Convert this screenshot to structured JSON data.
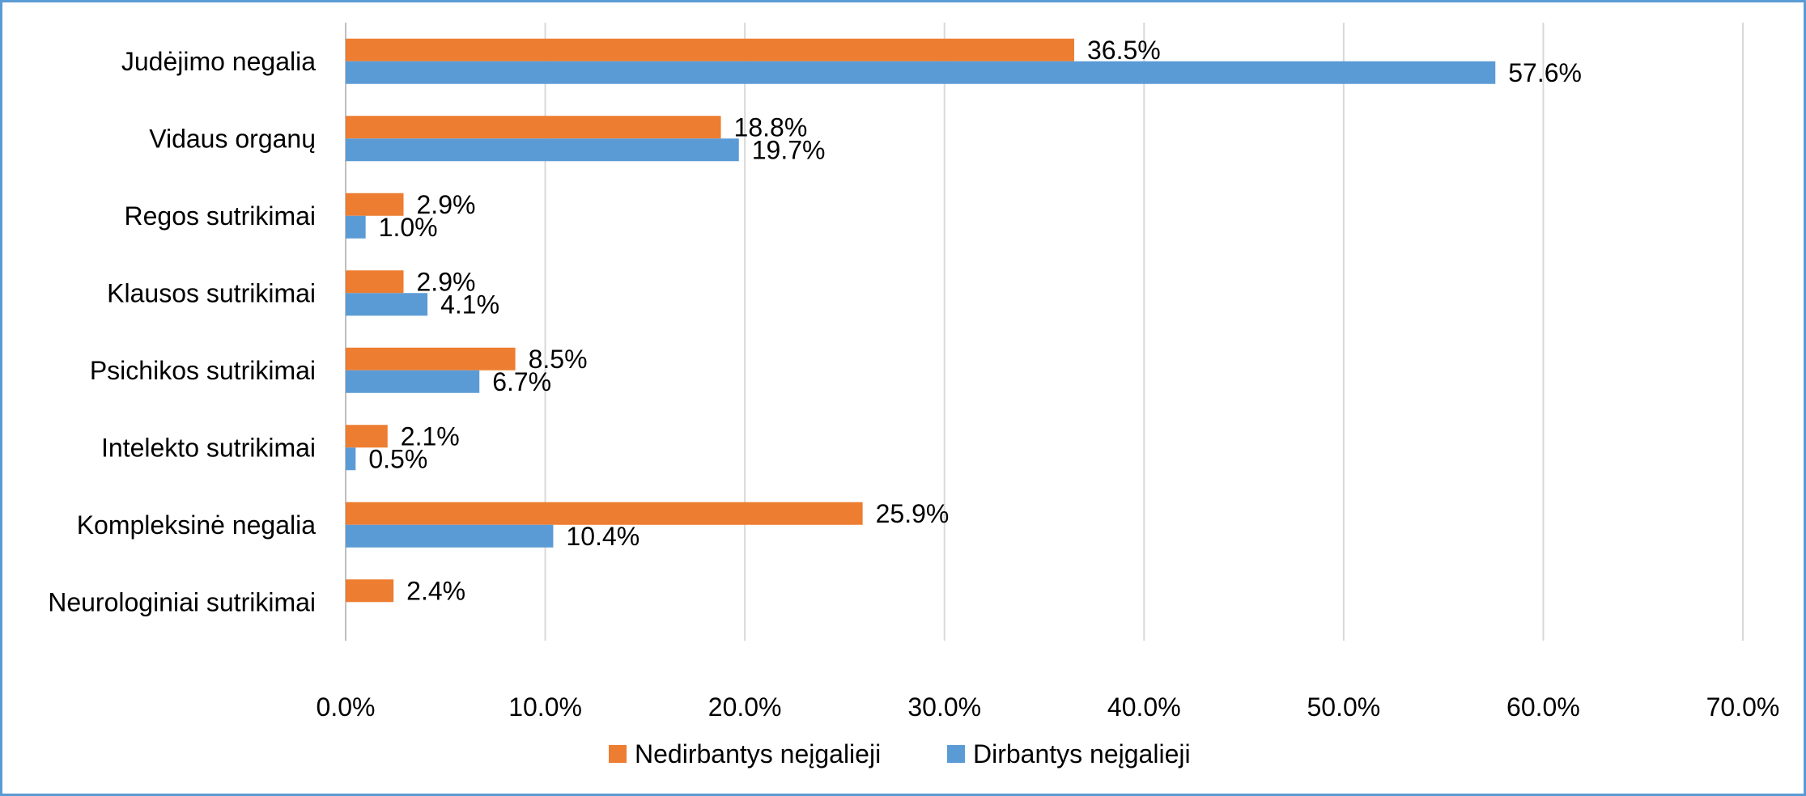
{
  "chart_data": {
    "type": "bar",
    "orientation": "horizontal",
    "title": "",
    "xlabel": "",
    "ylabel": "",
    "categories": [
      "Judėjimo negalia",
      "Vidaus organų",
      "Regos sutrikimai",
      "Klausos sutrikimai",
      "Psichikos sutrikimai",
      "Intelekto sutrikimai",
      "Kompleksinė negalia",
      "Neurologiniai sutrikimai"
    ],
    "series": [
      {
        "name": "Nedirbantys neįgalieji",
        "color": "#ed7d31",
        "values": [
          36.5,
          18.8,
          2.9,
          2.9,
          8.5,
          2.1,
          25.9,
          2.4
        ],
        "labels": [
          "36.5%",
          "18.8%",
          "2.9%",
          "2.9%",
          "8.5%",
          "2.1%",
          "25.9%",
          "2.4%"
        ]
      },
      {
        "name": "Dirbantys neįgalieji",
        "color": "#5b9bd5",
        "values": [
          57.6,
          19.7,
          1.0,
          4.1,
          6.7,
          0.5,
          10.4,
          null
        ],
        "labels": [
          "57.6%",
          "19.7%",
          "1.0%",
          "4.1%",
          "6.7%",
          "0.5%",
          "10.4%",
          null
        ]
      }
    ],
    "xlim": [
      0,
      70
    ],
    "xticks": [
      0,
      10,
      20,
      30,
      40,
      50,
      60,
      70
    ],
    "xtick_labels": [
      "0.0%",
      "10.0%",
      "20.0%",
      "30.0%",
      "40.0%",
      "50.0%",
      "60.0%",
      "70.0%"
    ],
    "grid": "vertical",
    "legend_position": "bottom"
  }
}
